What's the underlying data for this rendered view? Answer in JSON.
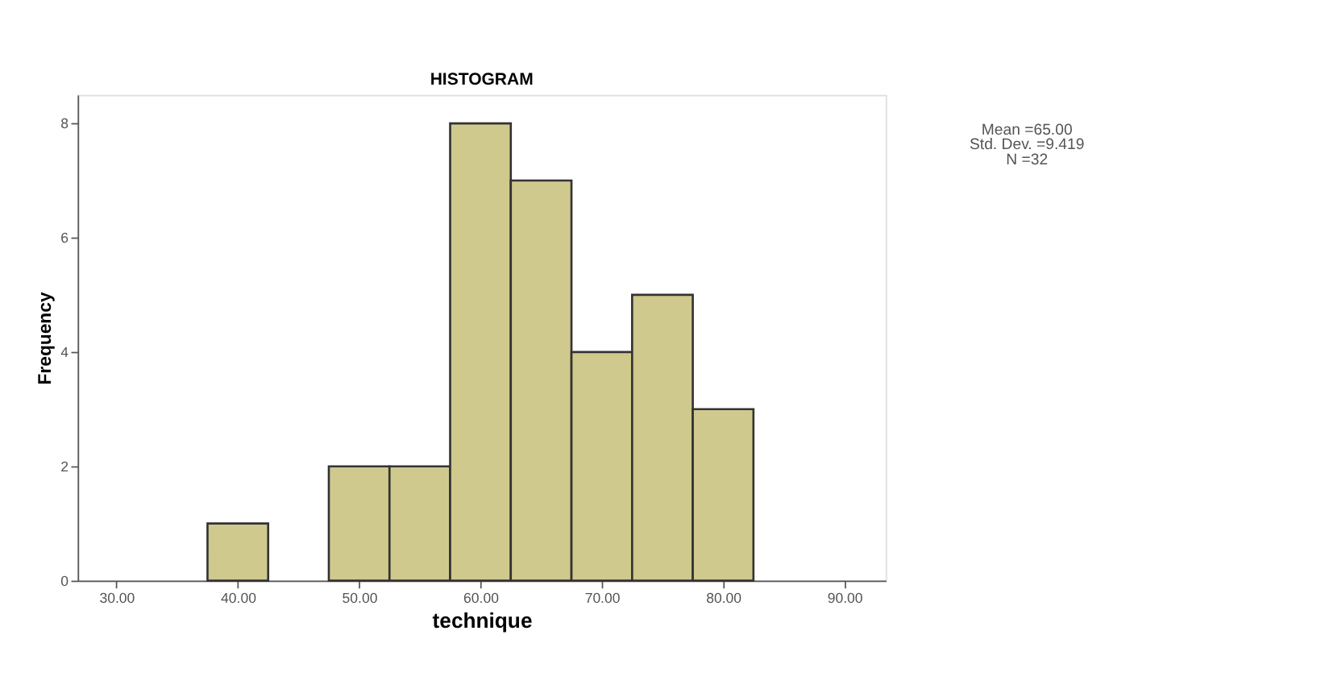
{
  "chart_data": {
    "type": "histogram",
    "title": "HISTOGRAM",
    "xlabel": "technique",
    "ylabel": "Frequency",
    "bins": [
      37.5,
      42.5,
      47.5,
      52.5,
      57.5,
      62.5,
      67.5,
      72.5,
      77.5,
      82.5
    ],
    "values": [
      1,
      0,
      2,
      2,
      8,
      7,
      4,
      5,
      3
    ],
    "color": "#cfc98e",
    "xlim": [
      26.8,
      93.4
    ],
    "xticks": [
      {
        "value": 30,
        "label": "30.00"
      },
      {
        "value": 40,
        "label": "40.00"
      },
      {
        "value": 50,
        "label": "50.00"
      },
      {
        "value": 60,
        "label": "60.00"
      },
      {
        "value": 70,
        "label": "70.00"
      },
      {
        "value": 80,
        "label": "80.00"
      },
      {
        "value": 90,
        "label": "90.00"
      }
    ],
    "ylim": [
      0,
      8.5
    ],
    "yticks": [
      0,
      2,
      4,
      6,
      8
    ],
    "grid": false,
    "annotations": [
      "Mean =65.00",
      "Std. Dev. =9.419",
      "N =32"
    ]
  }
}
